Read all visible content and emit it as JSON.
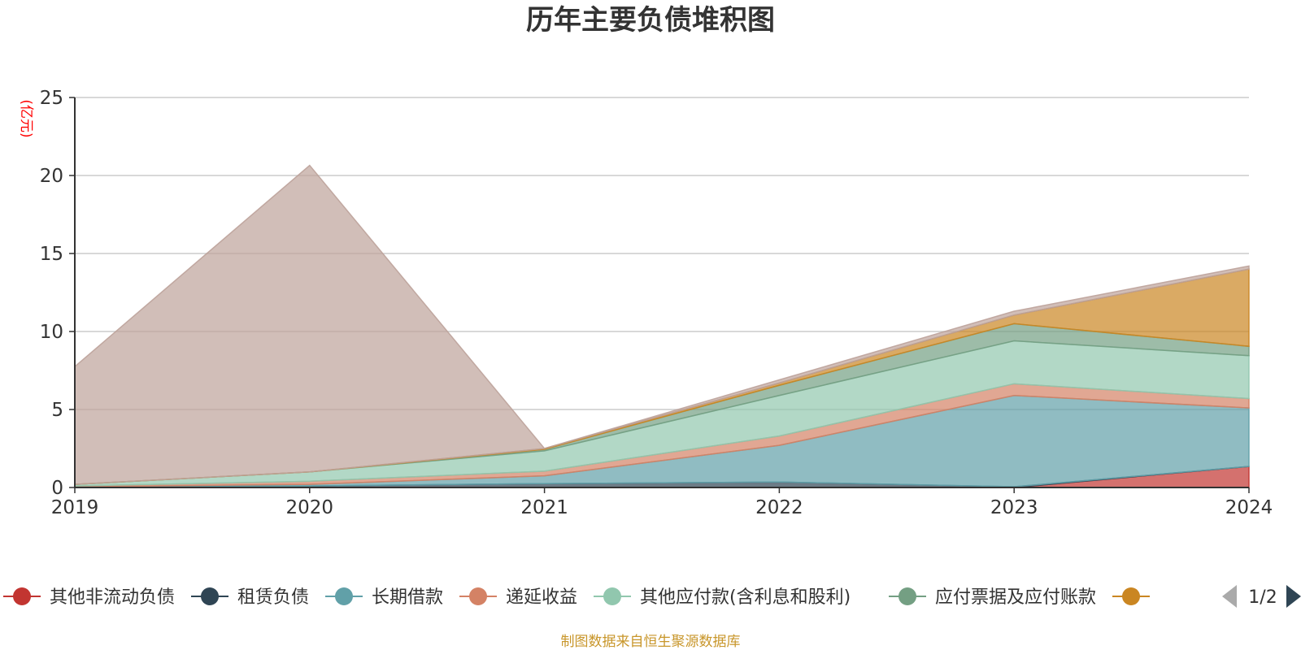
{
  "chart_data": {
    "type": "area",
    "title": "历年主要负债堆积图",
    "ylabel": "(亿元)",
    "xlabel": "",
    "x": [
      "2019",
      "2020",
      "2021",
      "2022",
      "2023",
      "2024"
    ],
    "ylim": [
      0,
      25
    ],
    "yticks": [
      0,
      5,
      10,
      15,
      20,
      25
    ],
    "grid": true,
    "stacked": true,
    "legend_position": "bottom",
    "series": [
      {
        "name": "其他非流动负债",
        "color": "#c23531",
        "values": [
          0,
          0,
          0,
          0,
          0,
          1.35
        ]
      },
      {
        "name": "租赁负债",
        "color": "#2f4554",
        "values": [
          0.05,
          0.1,
          0.25,
          0.35,
          0.05,
          0
        ]
      },
      {
        "name": "长期借款",
        "color": "#61a0a8",
        "values": [
          0,
          0.1,
          0.5,
          2.35,
          5.85,
          3.75
        ]
      },
      {
        "name": "递延收益",
        "color": "#d48265",
        "values": [
          0.05,
          0.2,
          0.3,
          0.6,
          0.75,
          0.6
        ]
      },
      {
        "name": "其他应付款(含利息和股利)",
        "color": "#91c7ae",
        "values": [
          0.1,
          0.6,
          1.3,
          2.6,
          2.75,
          2.75
        ]
      },
      {
        "name": "应付票据及应付账款",
        "color": "#749f83",
        "values": [
          0,
          0,
          0.1,
          0.65,
          1.1,
          0.6
        ]
      },
      {
        "name": "",
        "color": "#ca8622",
        "values": [
          0,
          0,
          0.05,
          0.15,
          0.55,
          4.95
        ]
      },
      {
        "name": "",
        "color": "#bda29a",
        "values": [
          7.55,
          19.65,
          0,
          0.2,
          0.25,
          0.2
        ]
      }
    ]
  },
  "legend": {
    "page_indicator": "1/2",
    "items": [
      "其他非流动负债",
      "租赁负债",
      "长期借款",
      "递延收益",
      "其他应付款(含利息和股利)",
      "应付票据及应付账款",
      ""
    ]
  },
  "source": "制图数据来自恒生聚源数据库",
  "colors": {
    "title": "#333333",
    "ylabel": "#ff0000",
    "grid": "#cccccc",
    "axis": "#333333",
    "source": "#c8962a",
    "pager_active": "#2f4554",
    "pager_inactive": "#aaaaaa"
  }
}
